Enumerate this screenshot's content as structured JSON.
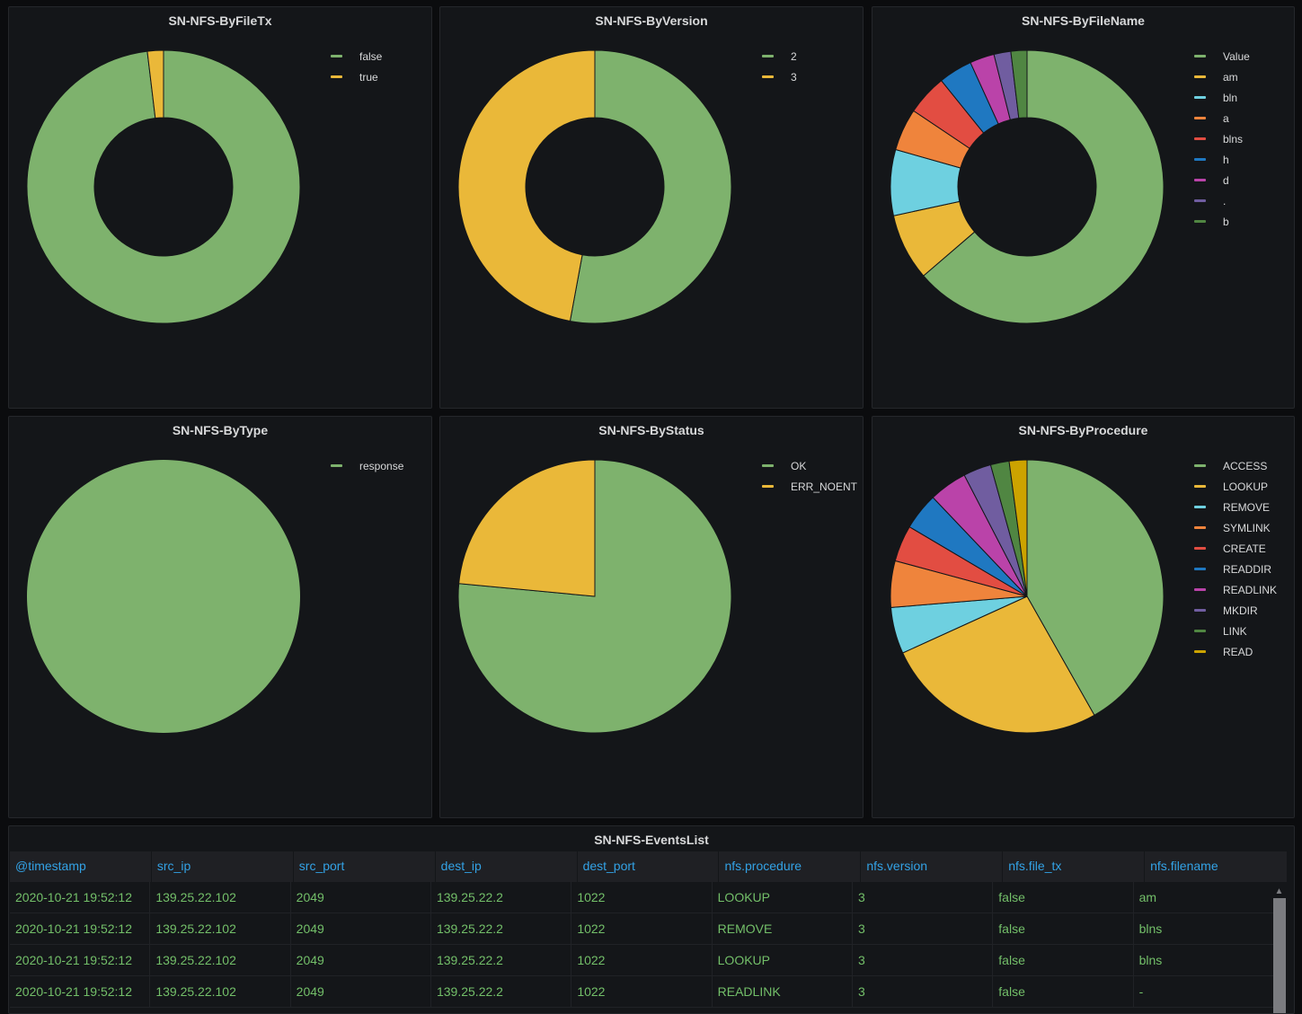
{
  "chart_data": [
    {
      "id": "filetx",
      "type": "pie",
      "donut": true,
      "title": "SN-NFS-ByFileTx",
      "legend": "top-right",
      "slices": [
        {
          "label": "false",
          "value": 98.1,
          "color": "#7eb26d"
        },
        {
          "label": "true",
          "value": 1.9,
          "color": "#eab839"
        }
      ]
    },
    {
      "id": "version",
      "type": "pie",
      "donut": true,
      "title": "SN-NFS-ByVersion",
      "legend": "top-right",
      "slices": [
        {
          "label": "2",
          "value": 52.9,
          "color": "#7eb26d"
        },
        {
          "label": "3",
          "value": 47.1,
          "color": "#eab839"
        }
      ]
    },
    {
      "id": "filename",
      "type": "pie",
      "donut": true,
      "title": "SN-NFS-ByFileName",
      "legend": "top-right",
      "slices": [
        {
          "label": "Value",
          "value": 63.7,
          "color": "#7eb26d"
        },
        {
          "label": "am",
          "value": 7.9,
          "color": "#eab839"
        },
        {
          "label": "bln",
          "value": 7.8,
          "color": "#6ed0e0"
        },
        {
          "label": "a",
          "value": 5.0,
          "color": "#ef843c"
        },
        {
          "label": "blns",
          "value": 4.8,
          "color": "#e24d42"
        },
        {
          "label": "h",
          "value": 4.0,
          "color": "#1f78c1"
        },
        {
          "label": "d",
          "value": 2.9,
          "color": "#ba43a9"
        },
        {
          "label": ".",
          "value": 2.0,
          "color": "#705da0"
        },
        {
          "label": "b",
          "value": 1.9,
          "color": "#508642"
        }
      ]
    },
    {
      "id": "type",
      "type": "pie",
      "donut": false,
      "title": "SN-NFS-ByType",
      "legend": "top-right",
      "slices": [
        {
          "label": "response",
          "value": 100,
          "color": "#7eb26d"
        }
      ]
    },
    {
      "id": "status",
      "type": "pie",
      "donut": false,
      "title": "SN-NFS-ByStatus",
      "legend": "top-right",
      "slices": [
        {
          "label": "OK",
          "value": 76.5,
          "color": "#7eb26d"
        },
        {
          "label": "ERR_NOENT",
          "value": 23.5,
          "color": "#eab839"
        }
      ]
    },
    {
      "id": "procedure",
      "type": "pie",
      "donut": false,
      "title": "SN-NFS-ByProcedure",
      "legend": "top-right",
      "slices": [
        {
          "label": "ACCESS",
          "value": 41.8,
          "color": "#7eb26d"
        },
        {
          "label": "LOOKUP",
          "value": 26.4,
          "color": "#eab839"
        },
        {
          "label": "REMOVE",
          "value": 5.5,
          "color": "#6ed0e0"
        },
        {
          "label": "SYMLINK",
          "value": 5.5,
          "color": "#ef843c"
        },
        {
          "label": "CREATE",
          "value": 4.3,
          "color": "#e24d42"
        },
        {
          "label": "READDIR",
          "value": 4.4,
          "color": "#1f78c1"
        },
        {
          "label": "READLINK",
          "value": 4.5,
          "color": "#ba43a9"
        },
        {
          "label": "MKDIR",
          "value": 3.3,
          "color": "#705da0"
        },
        {
          "label": "LINK",
          "value": 2.2,
          "color": "#508642"
        },
        {
          "label": "READ",
          "value": 2.1,
          "color": "#cca300"
        }
      ]
    }
  ],
  "events_table": {
    "title": "SN-NFS-EventsList",
    "columns": [
      "@timestamp",
      "src_ip",
      "src_port",
      "dest_ip",
      "dest_port",
      "nfs.procedure",
      "nfs.version",
      "nfs.file_tx",
      "nfs.filename"
    ],
    "rows": [
      [
        "2020-10-21 19:52:12",
        "139.25.22.102",
        "2049",
        "139.25.22.2",
        "1022",
        "LOOKUP",
        "3",
        "false",
        "am"
      ],
      [
        "2020-10-21 19:52:12",
        "139.25.22.102",
        "2049",
        "139.25.22.2",
        "1022",
        "REMOVE",
        "3",
        "false",
        "blns"
      ],
      [
        "2020-10-21 19:52:12",
        "139.25.22.102",
        "2049",
        "139.25.22.2",
        "1022",
        "LOOKUP",
        "3",
        "false",
        "blns"
      ],
      [
        "2020-10-21 19:52:12",
        "139.25.22.102",
        "2049",
        "139.25.22.2",
        "1022",
        "READLINK",
        "3",
        "false",
        "-"
      ]
    ],
    "scroll_up_icon": "chevron-up-icon"
  },
  "colors": {
    "header_text": "#33a2e5",
    "cell_text": "#73bf69",
    "panel_bg": "#141619"
  }
}
